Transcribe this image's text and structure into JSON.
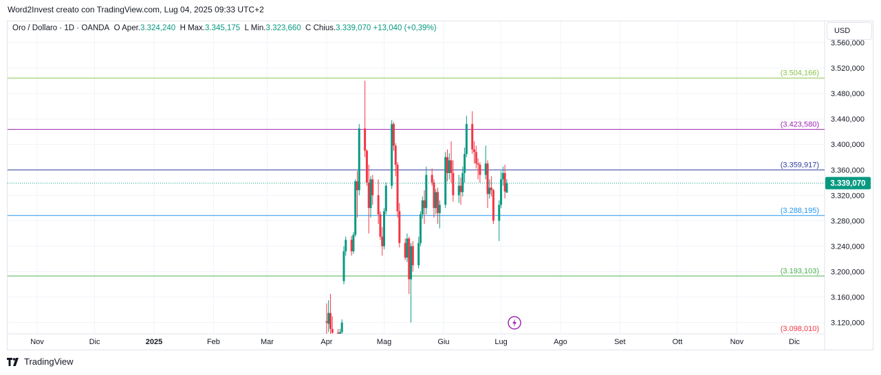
{
  "header": {
    "attribution": "Word2Invest creato con TradingView.com, Lug 04, 2025 09:33 UTC+2"
  },
  "legend": {
    "symbol": "Oro / Dollaro · 1D · OANDA",
    "open_label": "O",
    "open_prefix": "Aper.",
    "open_value": "3.324,240",
    "high_label": "H",
    "high_prefix": "Max.",
    "high_value": "3.345,175",
    "low_label": "L",
    "low_prefix": "Min.",
    "low_value": "3.323,660",
    "close_label": "C",
    "close_prefix": "Chius.",
    "close_value": "3.339,070",
    "change": "+13,040 (+0,39%)"
  },
  "currency_button": "USD",
  "footer": {
    "brand": "TradingView"
  },
  "colors": {
    "up": "#089981",
    "down": "#f23645",
    "grid": "#f0f3fa",
    "last_price_bg": "#089981",
    "alert_icon": "#9c27b0"
  },
  "chart_data": {
    "type": "candlestick",
    "symbol": "Oro / Dollaro",
    "interval": "1D",
    "exchange": "OANDA",
    "ylim": [
      3100,
      3560
    ],
    "yticks": [
      {
        "value": 3120,
        "label": "3.120,000"
      },
      {
        "value": 3160,
        "label": "3.160,000"
      },
      {
        "value": 3200,
        "label": "3.200,000"
      },
      {
        "value": 3240,
        "label": "3.240,000"
      },
      {
        "value": 3280,
        "label": "3.280,000"
      },
      {
        "value": 3320,
        "label": "3.320,000"
      },
      {
        "value": 3360,
        "label": "3.360,000"
      },
      {
        "value": 3400,
        "label": "3.400,000"
      },
      {
        "value": 3440,
        "label": "3.440,000"
      },
      {
        "value": 3480,
        "label": "3.480,000"
      },
      {
        "value": 3520,
        "label": "3.520,000"
      },
      {
        "value": 3560,
        "label": "3.560,000"
      }
    ],
    "xticks": [
      {
        "label": "Nov",
        "bold": false
      },
      {
        "label": "Dic",
        "bold": false
      },
      {
        "label": "2025",
        "bold": true
      },
      {
        "label": "Feb",
        "bold": false
      },
      {
        "label": "Mar",
        "bold": false
      },
      {
        "label": "Apr",
        "bold": false
      },
      {
        "label": "Mag",
        "bold": false
      },
      {
        "label": "Giu",
        "bold": false
      },
      {
        "label": "Lug",
        "bold": false
      },
      {
        "label": "Ago",
        "bold": false
      },
      {
        "label": "Set",
        "bold": false
      },
      {
        "label": "Ott",
        "bold": false
      },
      {
        "label": "Nov",
        "bold": false
      },
      {
        "label": "Dic",
        "bold": false
      }
    ],
    "levels": [
      {
        "value": 3504.166,
        "label": "(3.504,166)",
        "color": "#8bc34a"
      },
      {
        "value": 3423.58,
        "label": "(3.423,580)",
        "color": "#9c27b0"
      },
      {
        "value": 3359.917,
        "label": "(3.359,917)",
        "color": "#303f9f"
      },
      {
        "value": 3288.195,
        "label": "(3.288,195)",
        "color": "#2196f3"
      },
      {
        "value": 3193.103,
        "label": "(3.193,103)",
        "color": "#4caf50"
      },
      {
        "value": 3098.01,
        "label": "(3.098,010)",
        "color": "#f23645"
      }
    ],
    "last_price": {
      "value": 3339.07,
      "label": "3.339,070"
    },
    "candles": [
      {
        "date": "2025-04-01",
        "o": 3122,
        "h": 3150,
        "l": 3100,
        "c": 3120
      },
      {
        "date": "2025-04-02",
        "o": 3118,
        "h": 3155,
        "l": 3105,
        "c": 3135
      },
      {
        "date": "2025-04-03",
        "o": 3135,
        "h": 3165,
        "l": 3100,
        "c": 3110
      },
      {
        "date": "2025-04-04",
        "o": 3110,
        "h": 3130,
        "l": 3100,
        "c": 3104
      },
      {
        "date": "2025-04-07",
        "o": 3104,
        "h": 3110,
        "l": 3100,
        "c": 3101
      },
      {
        "date": "2025-04-08",
        "o": 3100,
        "h": 3110,
        "l": 3100,
        "c": 3105
      },
      {
        "date": "2025-04-09",
        "o": 3105,
        "h": 3125,
        "l": 3100,
        "c": 3120
      },
      {
        "date": "2025-04-10",
        "o": 3185,
        "h": 3240,
        "l": 3180,
        "c": 3232
      },
      {
        "date": "2025-04-11",
        "o": 3232,
        "h": 3255,
        "l": 3225,
        "c": 3250
      },
      {
        "date": "2025-04-14",
        "o": 3250,
        "h": 3256,
        "l": 3225,
        "c": 3232
      },
      {
        "date": "2025-04-15",
        "o": 3232,
        "h": 3262,
        "l": 3228,
        "c": 3258
      },
      {
        "date": "2025-04-16",
        "o": 3258,
        "h": 3345,
        "l": 3255,
        "c": 3342
      },
      {
        "date": "2025-04-17",
        "o": 3342,
        "h": 3358,
        "l": 3285,
        "c": 3328
      },
      {
        "date": "2025-04-18",
        "o": 3328,
        "h": 3432,
        "l": 3320,
        "c": 3425
      },
      {
        "date": "2025-04-21",
        "o": 3425,
        "h": 3500,
        "l": 3380,
        "c": 3390
      },
      {
        "date": "2025-04-22",
        "o": 3390,
        "h": 3392,
        "l": 3335,
        "c": 3340
      },
      {
        "date": "2025-04-23",
        "o": 3340,
        "h": 3368,
        "l": 3260,
        "c": 3300
      },
      {
        "date": "2025-04-24",
        "o": 3300,
        "h": 3350,
        "l": 3285,
        "c": 3345
      },
      {
        "date": "2025-04-25",
        "o": 3345,
        "h": 3352,
        "l": 3305,
        "c": 3320
      },
      {
        "date": "2025-04-28",
        "o": 3320,
        "h": 3345,
        "l": 3275,
        "c": 3290
      },
      {
        "date": "2025-04-29",
        "o": 3290,
        "h": 3295,
        "l": 3250,
        "c": 3255
      },
      {
        "date": "2025-04-30",
        "o": 3255,
        "h": 3270,
        "l": 3225,
        "c": 3240
      },
      {
        "date": "2025-05-01",
        "o": 3240,
        "h": 3300,
        "l": 3235,
        "c": 3295
      },
      {
        "date": "2025-05-02",
        "o": 3295,
        "h": 3340,
        "l": 3290,
        "c": 3335
      },
      {
        "date": "2025-05-05",
        "o": 3335,
        "h": 3438,
        "l": 3330,
        "c": 3432
      },
      {
        "date": "2025-05-06",
        "o": 3432,
        "h": 3435,
        "l": 3390,
        "c": 3398
      },
      {
        "date": "2025-05-07",
        "o": 3398,
        "h": 3402,
        "l": 3350,
        "c": 3368
      },
      {
        "date": "2025-05-08",
        "o": 3368,
        "h": 3372,
        "l": 3285,
        "c": 3295
      },
      {
        "date": "2025-05-09",
        "o": 3295,
        "h": 3308,
        "l": 3238,
        "c": 3245
      },
      {
        "date": "2025-05-12",
        "o": 3245,
        "h": 3252,
        "l": 3218,
        "c": 3222
      },
      {
        "date": "2025-05-13",
        "o": 3222,
        "h": 3260,
        "l": 3215,
        "c": 3252
      },
      {
        "date": "2025-05-14",
        "o": 3252,
        "h": 3255,
        "l": 3165,
        "c": 3188
      },
      {
        "date": "2025-05-15",
        "o": 3188,
        "h": 3245,
        "l": 3120,
        "c": 3240
      },
      {
        "date": "2025-05-16",
        "o": 3240,
        "h": 3248,
        "l": 3200,
        "c": 3210
      },
      {
        "date": "2025-05-19",
        "o": 3210,
        "h": 3255,
        "l": 3205,
        "c": 3245
      },
      {
        "date": "2025-05-20",
        "o": 3245,
        "h": 3295,
        "l": 3240,
        "c": 3290
      },
      {
        "date": "2025-05-21",
        "o": 3290,
        "h": 3318,
        "l": 3283,
        "c": 3312
      },
      {
        "date": "2025-05-22",
        "o": 3312,
        "h": 3328,
        "l": 3275,
        "c": 3300
      },
      {
        "date": "2025-05-23",
        "o": 3300,
        "h": 3365,
        "l": 3290,
        "c": 3352
      },
      {
        "date": "2025-05-26",
        "o": 3352,
        "h": 3362,
        "l": 3335,
        "c": 3340
      },
      {
        "date": "2025-05-27",
        "o": 3340,
        "h": 3345,
        "l": 3285,
        "c": 3300
      },
      {
        "date": "2025-05-28",
        "o": 3300,
        "h": 3330,
        "l": 3290,
        "c": 3325
      },
      {
        "date": "2025-05-29",
        "o": 3325,
        "h": 3332,
        "l": 3275,
        "c": 3292
      },
      {
        "date": "2025-05-30",
        "o": 3292,
        "h": 3312,
        "l": 3268,
        "c": 3305
      },
      {
        "date": "2025-06-02",
        "o": 3305,
        "h": 3388,
        "l": 3300,
        "c": 3380
      },
      {
        "date": "2025-06-03",
        "o": 3380,
        "h": 3392,
        "l": 3342,
        "c": 3355
      },
      {
        "date": "2025-06-04",
        "o": 3355,
        "h": 3386,
        "l": 3345,
        "c": 3375
      },
      {
        "date": "2025-06-05",
        "o": 3375,
        "h": 3405,
        "l": 3340,
        "c": 3355
      },
      {
        "date": "2025-06-06",
        "o": 3355,
        "h": 3375,
        "l": 3310,
        "c": 3320
      },
      {
        "date": "2025-06-09",
        "o": 3320,
        "h": 3352,
        "l": 3308,
        "c": 3335
      },
      {
        "date": "2025-06-10",
        "o": 3335,
        "h": 3348,
        "l": 3305,
        "c": 3325
      },
      {
        "date": "2025-06-11",
        "o": 3325,
        "h": 3365,
        "l": 3318,
        "c": 3355
      },
      {
        "date": "2025-06-12",
        "o": 3355,
        "h": 3395,
        "l": 3340,
        "c": 3385
      },
      {
        "date": "2025-06-13",
        "o": 3385,
        "h": 3445,
        "l": 3380,
        "c": 3432
      },
      {
        "date": "2025-06-16",
        "o": 3432,
        "h": 3452,
        "l": 3385,
        "c": 3392
      },
      {
        "date": "2025-06-17",
        "o": 3392,
        "h": 3405,
        "l": 3370,
        "c": 3388
      },
      {
        "date": "2025-06-18",
        "o": 3388,
        "h": 3398,
        "l": 3362,
        "c": 3370
      },
      {
        "date": "2025-06-19",
        "o": 3370,
        "h": 3378,
        "l": 3345,
        "c": 3368
      },
      {
        "date": "2025-06-20",
        "o": 3368,
        "h": 3372,
        "l": 3340,
        "c": 3352
      },
      {
        "date": "2025-06-23",
        "o": 3352,
        "h": 3398,
        "l": 3345,
        "c": 3370
      },
      {
        "date": "2025-06-24",
        "o": 3370,
        "h": 3375,
        "l": 3300,
        "c": 3322
      },
      {
        "date": "2025-06-25",
        "o": 3322,
        "h": 3345,
        "l": 3315,
        "c": 3332
      },
      {
        "date": "2025-06-26",
        "o": 3332,
        "h": 3350,
        "l": 3318,
        "c": 3328
      },
      {
        "date": "2025-06-27",
        "o": 3328,
        "h": 3330,
        "l": 3275,
        "c": 3280
      },
      {
        "date": "2025-06-30",
        "o": 3280,
        "h": 3312,
        "l": 3248,
        "c": 3305
      },
      {
        "date": "2025-07-01",
        "o": 3305,
        "h": 3358,
        "l": 3300,
        "c": 3345
      },
      {
        "date": "2025-07-02",
        "o": 3345,
        "h": 3365,
        "l": 3335,
        "c": 3355
      },
      {
        "date": "2025-07-03",
        "o": 3355,
        "h": 3368,
        "l": 3315,
        "c": 3326
      },
      {
        "date": "2025-07-04",
        "o": 3324.24,
        "h": 3345.175,
        "l": 3323.66,
        "c": 3339.07
      }
    ]
  }
}
